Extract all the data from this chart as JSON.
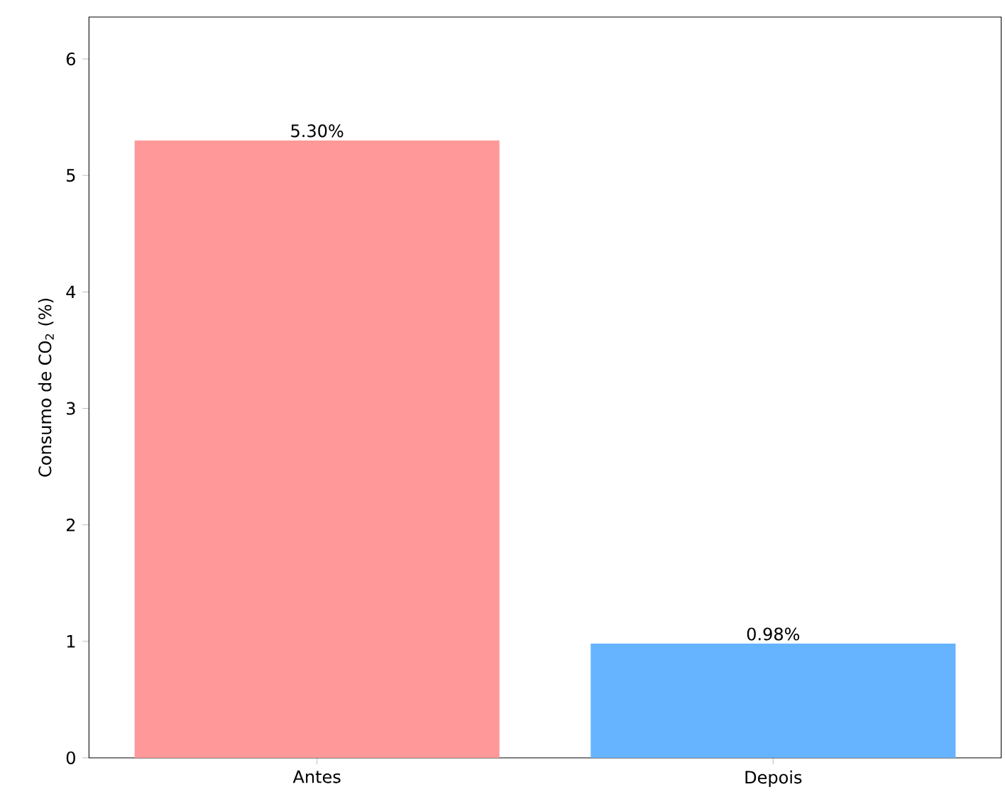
{
  "chart_data": {
    "type": "bar",
    "ylabel": "Consumo de CO$_{2}$ (%)",
    "categories": [
      "Antes",
      "Depois"
    ],
    "values": [
      5.3,
      0.98
    ],
    "colors": [
      "#ff9999",
      "#66b3ff"
    ],
    "value_labels": [
      "5.30%",
      "0.98%"
    ],
    "ylim": [
      0,
      6.36
    ],
    "yticks": [
      0,
      1,
      2,
      3,
      4,
      5,
      6
    ]
  }
}
